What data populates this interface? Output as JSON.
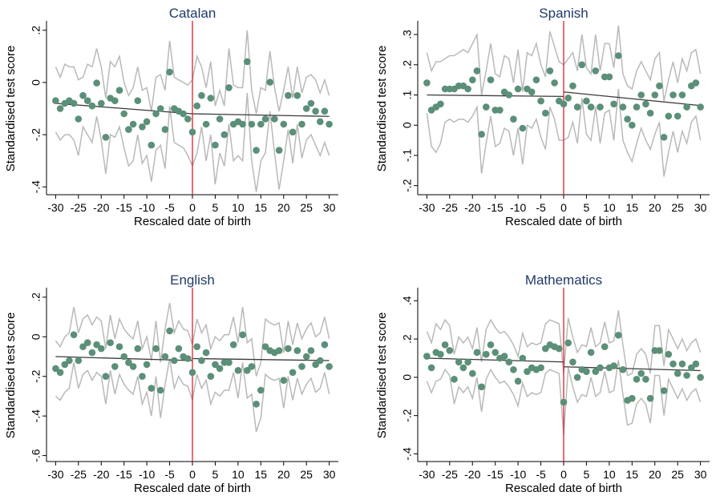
{
  "colors": {
    "dot": "#5b8f78",
    "band": "#b9b9b9",
    "fit": "#3a3a3a",
    "cutoff": "#e0202a",
    "title": "#1f3a68",
    "axis": "#000000"
  },
  "chart_data": [
    {
      "type": "scatter",
      "title": "Catalan",
      "xlabel": "Rescaled date of birth",
      "ylabel": "Standardised test score",
      "xlim": [
        -32,
        32
      ],
      "ylim": [
        -0.43,
        0.23
      ],
      "xticks": [
        -30,
        -25,
        -20,
        -15,
        -10,
        -5,
        0,
        5,
        10,
        15,
        20,
        25,
        30
      ],
      "xtick_labels": [
        "-30",
        "-25",
        "-20",
        "-15",
        "-10",
        "-5",
        "0",
        "5",
        "10",
        "15",
        "20",
        "25",
        "30"
      ],
      "yticks": [
        0.2,
        0,
        -0.2,
        -0.4
      ],
      "ytick_labels": [
        ".2",
        "0",
        "-.2",
        "-.4"
      ],
      "cutoff": 0,
      "x": [
        -30,
        -29,
        -28,
        -27,
        -26,
        -25,
        -24,
        -23,
        -22,
        -21,
        -20,
        -19,
        -18,
        -17,
        -16,
        -15,
        -14,
        -13,
        -12,
        -11,
        -10,
        -9,
        -8,
        -7,
        -6,
        -5,
        -4,
        -3,
        -2,
        -1,
        0,
        1,
        2,
        3,
        4,
        5,
        6,
        7,
        8,
        9,
        10,
        11,
        12,
        13,
        14,
        15,
        16,
        17,
        18,
        19,
        20,
        21,
        22,
        23,
        24,
        25,
        26,
        27,
        28,
        29,
        30
      ],
      "y": [
        -0.07,
        -0.1,
        -0.08,
        -0.07,
        -0.08,
        -0.14,
        -0.05,
        -0.07,
        -0.09,
        -0.002,
        -0.08,
        -0.21,
        -0.06,
        -0.07,
        -0.03,
        -0.12,
        -0.18,
        -0.16,
        -0.07,
        -0.17,
        -0.15,
        -0.24,
        -0.12,
        -0.1,
        -0.18,
        0.04,
        -0.1,
        -0.11,
        -0.12,
        -0.14,
        -0.19,
        -0.09,
        -0.05,
        -0.16,
        -0.06,
        -0.24,
        -0.14,
        -0.2,
        -0.02,
        -0.16,
        -0.15,
        -0.16,
        0.08,
        -0.16,
        -0.26,
        -0.16,
        -0.14,
        0.001,
        -0.14,
        -0.26,
        -0.16,
        -0.05,
        -0.19,
        -0.05,
        -0.16,
        -0.1,
        -0.08,
        -0.11,
        -0.15,
        -0.11,
        -0.16
      ],
      "upper": [
        0.06,
        0.02,
        0.07,
        0.06,
        0.06,
        0.01,
        0.02,
        0.07,
        0.06,
        0.13,
        0.06,
        -0.06,
        0.08,
        0.06,
        0.1,
        0.0,
        -0.05,
        -0.02,
        0.06,
        -0.03,
        -0.02,
        -0.11,
        0.02,
        0.03,
        -0.03,
        0.16,
        0.02,
        0.01,
        0.0,
        -0.01,
        0.01,
        0.1,
        0.06,
        -0.02,
        0.08,
        -0.09,
        -0.03,
        -0.09,
        0.13,
        -0.01,
        -0.02,
        -0.02,
        0.2,
        -0.03,
        -0.12,
        -0.02,
        -0.03,
        0.12,
        -0.02,
        -0.11,
        -0.03,
        0.06,
        -0.06,
        0.06,
        -0.04,
        0.02,
        0.03,
        0.01,
        -0.04,
        0.01,
        -0.05
      ],
      "lower": [
        -0.19,
        -0.22,
        -0.2,
        -0.2,
        -0.22,
        -0.28,
        -0.17,
        -0.2,
        -0.23,
        -0.13,
        -0.22,
        -0.35,
        -0.2,
        -0.21,
        -0.17,
        -0.25,
        -0.32,
        -0.3,
        -0.2,
        -0.31,
        -0.28,
        -0.38,
        -0.26,
        -0.24,
        -0.33,
        -0.09,
        -0.23,
        -0.24,
        -0.25,
        -0.28,
        -0.32,
        -0.27,
        -0.17,
        -0.3,
        -0.2,
        -0.39,
        -0.27,
        -0.32,
        -0.16,
        -0.3,
        -0.28,
        -0.3,
        -0.04,
        -0.3,
        -0.42,
        -0.3,
        -0.27,
        -0.11,
        -0.27,
        -0.41,
        -0.3,
        -0.18,
        -0.31,
        -0.16,
        -0.29,
        -0.22,
        -0.2,
        -0.24,
        -0.28,
        -0.23,
        -0.28
      ],
      "fit": [
        [
          -30,
          -0.08
        ],
        [
          0,
          -0.12
        ],
        [
          0,
          -0.12
        ],
        [
          30,
          -0.13
        ]
      ]
    },
    {
      "type": "scatter",
      "title": "Spanish",
      "xlabel": "Rescaled date of birth",
      "ylabel": "Standardised test score",
      "xlim": [
        -32,
        32
      ],
      "ylim": [
        -0.23,
        0.34
      ],
      "xticks": [
        -30,
        -25,
        -20,
        -15,
        -10,
        -5,
        0,
        5,
        10,
        15,
        20,
        25,
        30
      ],
      "xtick_labels": [
        "-30",
        "-25",
        "-20",
        "-15",
        "-10",
        "-5",
        "0",
        "5",
        "10",
        "15",
        "20",
        "25",
        "30"
      ],
      "yticks": [
        0.3,
        0.2,
        0.1,
        0,
        -0.1,
        -0.2
      ],
      "ytick_labels": [
        ".3",
        ".2",
        ".1",
        "0",
        "-.1",
        "-.2"
      ],
      "cutoff": 0,
      "x": [
        -30,
        -29,
        -28,
        -27,
        -26,
        -25,
        -24,
        -23,
        -22,
        -21,
        -20,
        -19,
        -18,
        -17,
        -16,
        -15,
        -14,
        -13,
        -12,
        -11,
        -10,
        -9,
        -8,
        -7,
        -6,
        -5,
        -4,
        -3,
        -2,
        -1,
        0,
        1,
        2,
        3,
        4,
        5,
        6,
        7,
        8,
        9,
        10,
        11,
        12,
        13,
        14,
        15,
        16,
        17,
        18,
        19,
        20,
        21,
        22,
        23,
        24,
        25,
        26,
        27,
        28,
        29,
        30
      ],
      "y": [
        0.14,
        0.05,
        0.06,
        0.07,
        0.12,
        0.12,
        0.12,
        0.13,
        0.13,
        0.12,
        0.15,
        0.18,
        -0.03,
        0.06,
        0.15,
        0.05,
        0.05,
        0.11,
        0.1,
        0.02,
        0.12,
        -0.01,
        0.12,
        0.11,
        0.15,
        0.08,
        0.04,
        0.18,
        0.14,
        0.08,
        0.07,
        0.09,
        0.13,
        0.06,
        0.2,
        0.08,
        0.06,
        0.18,
        0.06,
        0.16,
        0.16,
        0.07,
        0.23,
        0.06,
        0.02,
        0.0,
        0.06,
        0.1,
        0.07,
        0.04,
        0.1,
        0.13,
        -0.04,
        0.03,
        0.1,
        0.03,
        0.1,
        0.06,
        0.13,
        0.14,
        0.06
      ],
      "upper": [
        0.24,
        0.18,
        0.21,
        0.21,
        0.22,
        0.23,
        0.23,
        0.24,
        0.25,
        0.24,
        0.27,
        0.3,
        0.1,
        0.18,
        0.27,
        0.17,
        0.16,
        0.23,
        0.22,
        0.14,
        0.25,
        0.11,
        0.24,
        0.23,
        0.27,
        0.2,
        0.16,
        0.31,
        0.26,
        0.21,
        0.2,
        0.22,
        0.24,
        0.18,
        0.3,
        0.19,
        0.17,
        0.3,
        0.18,
        0.27,
        0.27,
        0.19,
        0.33,
        0.17,
        0.13,
        0.12,
        0.18,
        0.21,
        0.18,
        0.15,
        0.22,
        0.24,
        0.08,
        0.15,
        0.21,
        0.14,
        0.22,
        0.18,
        0.24,
        0.25,
        0.17
      ],
      "lower": [
        0.04,
        -0.07,
        -0.09,
        -0.06,
        0.01,
        0.02,
        0.01,
        0.02,
        0.02,
        0.01,
        0.03,
        0.06,
        -0.16,
        -0.06,
        0.03,
        -0.07,
        -0.06,
        -0.01,
        -0.02,
        -0.1,
        -0.01,
        -0.13,
        0.0,
        -0.01,
        0.02,
        -0.04,
        -0.08,
        0.06,
        0.02,
        -0.05,
        -0.05,
        -0.04,
        0.01,
        -0.06,
        0.09,
        -0.03,
        -0.05,
        0.06,
        -0.06,
        0.04,
        0.05,
        -0.05,
        0.12,
        -0.05,
        -0.09,
        -0.12,
        -0.06,
        -0.01,
        -0.05,
        -0.08,
        -0.03,
        0.01,
        -0.17,
        -0.09,
        -0.02,
        -0.09,
        -0.02,
        -0.06,
        0.01,
        0.03,
        -0.05
      ],
      "fit": [
        [
          -30,
          0.1
        ],
        [
          0,
          0.095
        ],
        [
          0,
          0.11
        ],
        [
          30,
          0.065
        ]
      ]
    },
    {
      "type": "scatter",
      "title": "English",
      "xlabel": "Rescaled date of birth",
      "ylabel": "Standardised test score",
      "xlim": [
        -32,
        32
      ],
      "ylim": [
        -0.63,
        0.24
      ],
      "xticks": [
        -30,
        -25,
        -20,
        -15,
        -10,
        -5,
        0,
        5,
        10,
        15,
        20,
        25,
        30
      ],
      "xtick_labels": [
        "-30",
        "-25",
        "-20",
        "-15",
        "-10",
        "-5",
        "0",
        "5",
        "10",
        "15",
        "20",
        "25",
        "30"
      ],
      "yticks": [
        0.2,
        0,
        -0.2,
        -0.4,
        -0.6
      ],
      "ytick_labels": [
        ".2",
        "0",
        "-.2",
        "-.4",
        "-.6"
      ],
      "cutoff": 0,
      "x": [
        -30,
        -29,
        -28,
        -27,
        -26,
        -25,
        -24,
        -23,
        -22,
        -21,
        -20,
        -19,
        -18,
        -17,
        -16,
        -15,
        -14,
        -13,
        -12,
        -11,
        -10,
        -9,
        -8,
        -7,
        -6,
        -5,
        -4,
        -3,
        -2,
        -1,
        0,
        1,
        2,
        3,
        4,
        5,
        6,
        7,
        8,
        9,
        10,
        11,
        12,
        13,
        14,
        15,
        16,
        17,
        18,
        19,
        20,
        21,
        22,
        23,
        24,
        25,
        26,
        27,
        28,
        29,
        30
      ],
      "y": [
        -0.16,
        -0.18,
        -0.14,
        -0.12,
        0.01,
        -0.12,
        -0.05,
        -0.03,
        -0.08,
        -0.04,
        -0.06,
        -0.2,
        -0.03,
        -0.15,
        -0.05,
        -0.1,
        -0.13,
        -0.15,
        -0.06,
        -0.2,
        -0.14,
        -0.26,
        -0.06,
        -0.27,
        -0.1,
        0.03,
        -0.12,
        -0.06,
        -0.1,
        -0.11,
        -0.18,
        -0.05,
        -0.12,
        -0.08,
        -0.2,
        -0.14,
        -0.16,
        -0.13,
        -0.13,
        -0.04,
        -0.17,
        0.01,
        -0.17,
        -0.15,
        -0.34,
        -0.27,
        -0.05,
        -0.07,
        -0.08,
        -0.07,
        -0.22,
        -0.06,
        -0.18,
        -0.07,
        -0.15,
        -0.1,
        -0.07,
        -0.14,
        -0.12,
        -0.04,
        -0.15
      ],
      "upper": [
        -0.02,
        -0.05,
        0.0,
        0.02,
        0.15,
        0.02,
        0.09,
        0.11,
        0.06,
        0.1,
        0.08,
        -0.06,
        0.11,
        -0.01,
        0.09,
        0.04,
        0.01,
        -0.01,
        0.08,
        -0.06,
        0.0,
        -0.12,
        0.08,
        -0.13,
        0.04,
        0.17,
        0.02,
        0.08,
        0.04,
        0.03,
        -0.04,
        0.09,
        0.02,
        0.06,
        -0.06,
        0.0,
        -0.02,
        0.01,
        0.01,
        0.1,
        -0.03,
        0.15,
        -0.03,
        -0.01,
        -0.2,
        -0.13,
        0.09,
        0.07,
        0.06,
        0.07,
        -0.08,
        0.08,
        -0.04,
        0.07,
        -0.01,
        0.04,
        0.07,
        0.0,
        0.02,
        0.1,
        -0.01
      ],
      "lower": [
        -0.3,
        -0.32,
        -0.28,
        -0.26,
        -0.13,
        -0.26,
        -0.19,
        -0.17,
        -0.22,
        -0.18,
        -0.2,
        -0.34,
        -0.17,
        -0.29,
        -0.19,
        -0.24,
        -0.27,
        -0.29,
        -0.2,
        -0.34,
        -0.28,
        -0.4,
        -0.2,
        -0.41,
        -0.24,
        -0.11,
        -0.26,
        -0.2,
        -0.24,
        -0.25,
        -0.32,
        -0.19,
        -0.26,
        -0.22,
        -0.34,
        -0.28,
        -0.3,
        -0.27,
        -0.27,
        -0.18,
        -0.31,
        -0.13,
        -0.31,
        -0.29,
        -0.48,
        -0.41,
        -0.19,
        -0.21,
        -0.22,
        -0.21,
        -0.36,
        -0.2,
        -0.32,
        -0.21,
        -0.29,
        -0.24,
        -0.21,
        -0.28,
        -0.26,
        -0.18,
        -0.29
      ],
      "fit": [
        [
          -30,
          -0.1
        ],
        [
          0,
          -0.12
        ],
        [
          0,
          -0.11
        ],
        [
          30,
          -0.12
        ]
      ]
    },
    {
      "type": "scatter",
      "title": "Mathematics",
      "xlabel": "Rescaled date of birth",
      "ylabel": "Standardised test score",
      "xlim": [
        -32,
        32
      ],
      "ylim": [
        -0.44,
        0.46
      ],
      "xticks": [
        -30,
        -25,
        -20,
        -15,
        -10,
        -5,
        0,
        5,
        10,
        15,
        20,
        25,
        30
      ],
      "xtick_labels": [
        "-30",
        "-25",
        "-20",
        "-15",
        "-10",
        "-5",
        "0",
        "5",
        "10",
        "15",
        "20",
        "25",
        "30"
      ],
      "yticks": [
        0.4,
        0.2,
        0,
        -0.2,
        -0.4
      ],
      "ytick_labels": [
        ".4",
        ".2",
        "0",
        "-.2",
        "-.4"
      ],
      "cutoff": 0,
      "x": [
        -30,
        -29,
        -28,
        -27,
        -26,
        -25,
        -24,
        -23,
        -22,
        -21,
        -20,
        -19,
        -18,
        -17,
        -16,
        -15,
        -14,
        -13,
        -12,
        -11,
        -10,
        -9,
        -8,
        -7,
        -6,
        -5,
        -4,
        -3,
        -2,
        -1,
        0,
        1,
        2,
        3,
        4,
        5,
        6,
        7,
        8,
        9,
        10,
        11,
        12,
        13,
        14,
        15,
        16,
        17,
        18,
        19,
        20,
        21,
        22,
        23,
        24,
        25,
        26,
        27,
        28,
        29,
        30
      ],
      "y": [
        0.11,
        0.05,
        0.13,
        0.12,
        0.17,
        0.14,
        -0.01,
        0.08,
        0.05,
        0.08,
        0.02,
        0.13,
        -0.05,
        0.12,
        0.17,
        0.13,
        0.1,
        0.11,
        0.08,
        0.04,
        -0.02,
        0.1,
        0.03,
        0.05,
        0.04,
        0.05,
        0.15,
        0.17,
        0.16,
        0.15,
        -0.13,
        0.18,
        0.08,
        0.0,
        0.04,
        0.03,
        0.13,
        0.03,
        0.05,
        0.16,
        0.05,
        0.06,
        0.22,
        0.04,
        -0.12,
        -0.11,
        -0.01,
        0.02,
        -0.01,
        -0.11,
        0.14,
        0.14,
        -0.07,
        0.12,
        0.07,
        0.02,
        0.07,
        0.01,
        0.05,
        0.07,
        0.0
      ],
      "upper": [
        0.24,
        0.18,
        0.28,
        0.25,
        0.3,
        0.27,
        0.12,
        0.21,
        0.18,
        0.21,
        0.15,
        0.26,
        0.08,
        0.25,
        0.3,
        0.26,
        0.23,
        0.24,
        0.21,
        0.17,
        0.11,
        0.23,
        0.16,
        0.18,
        0.17,
        0.18,
        0.28,
        0.3,
        0.29,
        0.28,
        0.02,
        0.31,
        0.21,
        0.13,
        0.17,
        0.16,
        0.26,
        0.16,
        0.18,
        0.29,
        0.18,
        0.19,
        0.35,
        0.17,
        0.01,
        0.02,
        0.12,
        0.15,
        0.12,
        0.02,
        0.27,
        0.27,
        0.06,
        0.25,
        0.2,
        0.15,
        0.2,
        0.14,
        0.18,
        0.2,
        0.13
      ],
      "lower": [
        -0.02,
        -0.08,
        -0.02,
        -0.01,
        0.04,
        0.01,
        -0.14,
        -0.05,
        -0.08,
        -0.05,
        -0.11,
        0.0,
        -0.18,
        -0.01,
        0.04,
        0.0,
        -0.03,
        -0.02,
        -0.05,
        -0.09,
        -0.15,
        -0.03,
        -0.1,
        -0.08,
        -0.09,
        -0.08,
        0.02,
        0.04,
        0.03,
        0.02,
        -0.3,
        0.05,
        -0.05,
        -0.13,
        -0.09,
        -0.1,
        0.0,
        -0.1,
        -0.08,
        0.03,
        -0.08,
        -0.07,
        0.09,
        -0.09,
        -0.25,
        -0.24,
        -0.14,
        -0.11,
        -0.14,
        -0.24,
        0.01,
        0.01,
        -0.2,
        -0.01,
        -0.06,
        -0.11,
        -0.06,
        -0.12,
        -0.08,
        -0.06,
        -0.13
      ],
      "fit": [
        [
          -30,
          0.1
        ],
        [
          0,
          0.08
        ],
        [
          0,
          0.055
        ],
        [
          30,
          0.035
        ]
      ]
    }
  ]
}
